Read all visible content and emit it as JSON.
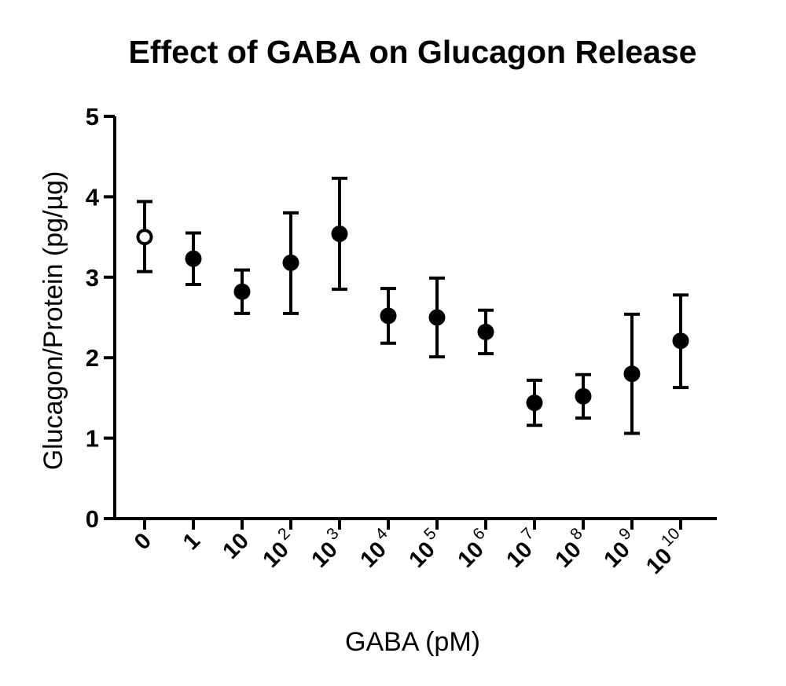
{
  "chart_data": {
    "type": "scatter",
    "title": "Effect of GABA on  Glucagon Release",
    "xlabel": "GABA (pM)",
    "ylabel": "Glucagon/Protein (pg/µg)",
    "ylim": [
      0,
      5
    ],
    "yticks": [
      "0",
      "1",
      "2",
      "3",
      "4",
      "5"
    ],
    "grid": false,
    "categories": [
      {
        "base": "0",
        "exp": ""
      },
      {
        "base": "1",
        "exp": ""
      },
      {
        "base": "10",
        "exp": ""
      },
      {
        "base": "10",
        "exp": "2"
      },
      {
        "base": "10",
        "exp": "3"
      },
      {
        "base": "10",
        "exp": "4"
      },
      {
        "base": "10",
        "exp": "5"
      },
      {
        "base": "10",
        "exp": "6"
      },
      {
        "base": "10",
        "exp": "7"
      },
      {
        "base": "10",
        "exp": "8"
      },
      {
        "base": "10",
        "exp": "9"
      },
      {
        "base": "10",
        "exp": "10"
      }
    ],
    "values": [
      3.5,
      3.23,
      2.82,
      3.18,
      3.54,
      2.52,
      2.5,
      2.32,
      1.44,
      1.52,
      1.8,
      2.21
    ],
    "error_upper": [
      3.94,
      3.55,
      3.09,
      3.8,
      4.23,
      2.86,
      2.99,
      2.59,
      1.72,
      1.79,
      2.54,
      2.78
    ],
    "error_lower": [
      3.07,
      2.91,
      2.55,
      2.55,
      2.85,
      2.18,
      2.01,
      2.05,
      1.16,
      1.25,
      1.06,
      1.63
    ],
    "marker_fill": [
      "open",
      "filled",
      "filled",
      "filled",
      "filled",
      "filled",
      "filled",
      "filled",
      "filled",
      "filled",
      "filled",
      "filled"
    ],
    "color": "#000000"
  }
}
